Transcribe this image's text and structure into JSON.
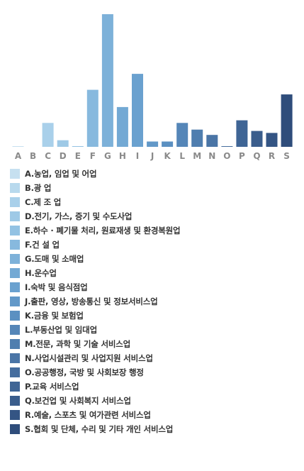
{
  "chart_data": {
    "type": "bar",
    "title": "",
    "xlabel": "",
    "ylabel": "",
    "ylim": [
      0,
      100
    ],
    "grid": false,
    "legend_placement": "bottom",
    "categories": [
      "A",
      "B",
      "C",
      "D",
      "E",
      "F",
      "G",
      "H",
      "I",
      "J",
      "K",
      "L",
      "M",
      "N",
      "O",
      "P",
      "Q",
      "R",
      "S"
    ],
    "values": [
      0.5,
      0,
      18,
      5,
      0.5,
      43,
      100,
      30,
      55,
      4,
      4,
      18,
      13,
      9,
      0.5,
      20,
      12,
      10.5,
      39.5
    ],
    "colors": [
      "#c6e0f0",
      "#b8d9ed",
      "#a9d0ea",
      "#9ec9e6",
      "#93c2e3",
      "#87b9de",
      "#7db1d9",
      "#73a9d4",
      "#6aa1cf",
      "#6298c8",
      "#5b90c1",
      "#5586b8",
      "#4f7eaf",
      "#4a75a6",
      "#456d9e",
      "#3f6595",
      "#3a5d8c",
      "#345584",
      "#2f4d7b"
    ],
    "legend": [
      "A.농업, 임업 및 어업",
      "B.광 업",
      "C.제 조 업",
      "D.전기, 가스, 증기 및 수도사업",
      "E.하수 · 폐기물 처리, 원료재생 및 환경복원업",
      "F.건 설 업",
      "G.도매 및 소매업",
      "H.운수업",
      "I.숙박 및 음식점업",
      "J.출판, 영상, 방송통신 및 정보서비스업",
      "K.금융 및 보험업",
      "L.부동산업 및 임대업",
      "M.전문, 과학 및 기술 서비스업",
      "N.사업시설관리 및 사업지원 서비스업",
      "O.공공행정, 국방 및 사회보장 행정",
      "P.교육 서비스업",
      "Q.보건업 및 사회복지 서비스업",
      "R.예술, 스포츠 및 여가관련 서비스업",
      "S.협회 및 단체, 수리 및 기타 개인 서비스업"
    ]
  }
}
